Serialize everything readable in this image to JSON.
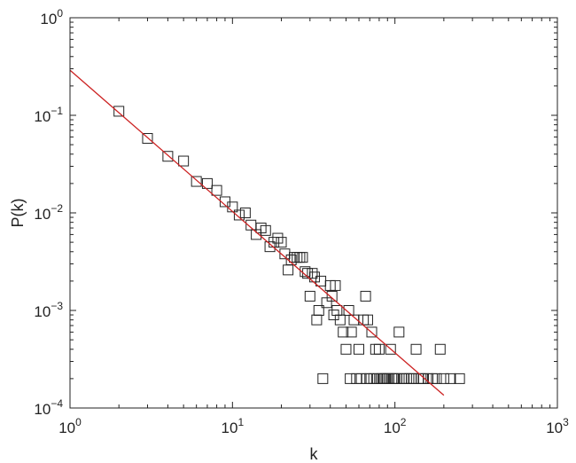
{
  "chart_data": {
    "type": "scatter",
    "title": "",
    "xlabel": "k",
    "ylabel": "P(k)",
    "xscale": "log",
    "yscale": "log",
    "xlim": [
      1,
      1000
    ],
    "ylim": [
      0.0001,
      1
    ],
    "grid": false,
    "legend": "none",
    "x_ticks": [
      {
        "value": 1,
        "base": "10",
        "exp": "0"
      },
      {
        "value": 10,
        "base": "10",
        "exp": "1"
      },
      {
        "value": 100,
        "base": "10",
        "exp": "2"
      },
      {
        "value": 1000,
        "base": "10",
        "exp": "3"
      }
    ],
    "y_ticks": [
      {
        "value": 0.0001,
        "base": "10",
        "exp": "−4"
      },
      {
        "value": 0.001,
        "base": "10",
        "exp": "−3"
      },
      {
        "value": 0.01,
        "base": "10",
        "exp": "−2"
      },
      {
        "value": 0.1,
        "base": "10",
        "exp": "−1"
      },
      {
        "value": 1,
        "base": "10",
        "exp": "0"
      }
    ],
    "series": [
      {
        "kind": "points",
        "marker": "square",
        "color": "#222222",
        "points": [
          [
            2,
            0.11
          ],
          [
            3,
            0.058
          ],
          [
            4,
            0.038
          ],
          [
            5,
            0.034
          ],
          [
            6,
            0.021
          ],
          [
            7,
            0.02
          ],
          [
            8,
            0.017
          ],
          [
            9,
            0.013
          ],
          [
            10,
            0.0115
          ],
          [
            11,
            0.0095
          ],
          [
            12,
            0.01
          ],
          [
            13,
            0.0075
          ],
          [
            14,
            0.006
          ],
          [
            15,
            0.007
          ],
          [
            16,
            0.0066
          ],
          [
            17,
            0.0045
          ],
          [
            18,
            0.005
          ],
          [
            19,
            0.0055
          ],
          [
            20,
            0.005
          ],
          [
            21,
            0.0038
          ],
          [
            22,
            0.0026
          ],
          [
            23,
            0.0033
          ],
          [
            24,
            0.0035
          ],
          [
            25,
            0.0035
          ],
          [
            26,
            0.0035
          ],
          [
            27,
            0.0035
          ],
          [
            28,
            0.0025
          ],
          [
            29,
            0.0024
          ],
          [
            30,
            0.0014
          ],
          [
            31,
            0.0024
          ],
          [
            32,
            0.0022
          ],
          [
            33,
            0.0008
          ],
          [
            34,
            0.001
          ],
          [
            35,
            0.002
          ],
          [
            36,
            0.0002
          ],
          [
            38,
            0.0012
          ],
          [
            40,
            0.0018
          ],
          [
            41,
            0.0014
          ],
          [
            42,
            0.0009
          ],
          [
            43,
            0.0018
          ],
          [
            44,
            0.001
          ],
          [
            46,
            0.0008
          ],
          [
            48,
            0.0006
          ],
          [
            50,
            0.0004
          ],
          [
            52,
            0.001
          ],
          [
            53,
            0.0002
          ],
          [
            54,
            0.0006
          ],
          [
            56,
            0.0008
          ],
          [
            58,
            0.0002
          ],
          [
            60,
            0.0004
          ],
          [
            62,
            0.0002
          ],
          [
            64,
            0.0008
          ],
          [
            66,
            0.0014
          ],
          [
            67,
            0.0002
          ],
          [
            68,
            0.0008
          ],
          [
            70,
            0.0002
          ],
          [
            72,
            0.0006
          ],
          [
            74,
            0.0002
          ],
          [
            76,
            0.0004
          ],
          [
            78,
            0.0002
          ],
          [
            80,
            0.0004
          ],
          [
            82,
            0.0002
          ],
          [
            84,
            0.0002
          ],
          [
            86,
            0.0002
          ],
          [
            88,
            0.0002
          ],
          [
            90,
            0.0002
          ],
          [
            92,
            0.0002
          ],
          [
            94,
            0.0004
          ],
          [
            96,
            0.0002
          ],
          [
            98,
            0.0002
          ],
          [
            100,
            0.0002
          ],
          [
            103,
            0.0002
          ],
          [
            106,
            0.0006
          ],
          [
            110,
            0.0002
          ],
          [
            114,
            0.0002
          ],
          [
            118,
            0.0002
          ],
          [
            122,
            0.0002
          ],
          [
            126,
            0.0002
          ],
          [
            130,
            0.0002
          ],
          [
            135,
            0.0004
          ],
          [
            140,
            0.0002
          ],
          [
            145,
            0.0002
          ],
          [
            150,
            0.0002
          ],
          [
            160,
            0.0002
          ],
          [
            170,
            0.0002
          ],
          [
            180,
            0.0002
          ],
          [
            190,
            0.0004
          ],
          [
            200,
            0.0002
          ],
          [
            220,
            0.0002
          ],
          [
            250,
            0.0002
          ]
        ]
      },
      {
        "kind": "fit-line",
        "color": "#cc2222",
        "points": [
          [
            1,
            0.29
          ],
          [
            200,
            0.000135
          ]
        ]
      }
    ]
  }
}
